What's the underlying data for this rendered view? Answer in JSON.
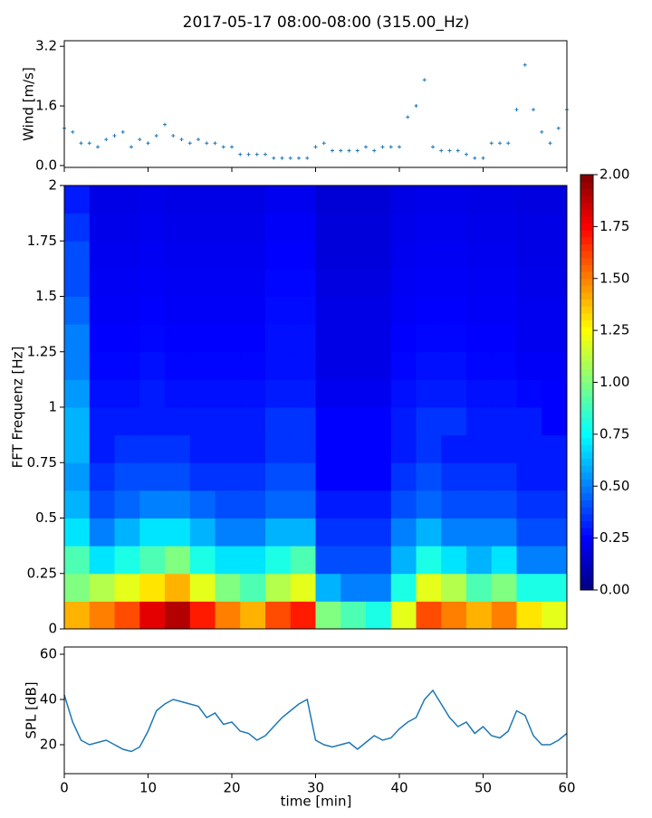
{
  "chart_data": [
    {
      "type": "scatter",
      "title": "2017-05-17 08:00-08:00 (315.00_Hz)",
      "y_label": "Wind [m/s]",
      "color": "#1f77b4",
      "x": [
        0,
        1,
        2,
        3,
        4,
        5,
        6,
        7,
        8,
        9,
        10,
        11,
        12,
        13,
        14,
        15,
        16,
        17,
        18,
        19,
        20,
        21,
        22,
        23,
        24,
        25,
        26,
        27,
        28,
        29,
        30,
        31,
        32,
        33,
        34,
        35,
        36,
        37,
        38,
        39,
        40,
        41,
        42,
        43,
        44,
        45,
        46,
        47,
        48,
        49,
        50,
        51,
        52,
        53,
        54,
        55,
        56,
        57,
        58,
        59,
        60
      ],
      "values": [
        1.0,
        0.9,
        0.6,
        0.6,
        0.5,
        0.7,
        0.8,
        0.9,
        0.5,
        0.7,
        0.6,
        0.8,
        1.1,
        0.8,
        0.7,
        0.6,
        0.7,
        0.6,
        0.6,
        0.5,
        0.5,
        0.3,
        0.3,
        0.3,
        0.3,
        0.2,
        0.2,
        0.2,
        0.2,
        0.2,
        0.5,
        0.6,
        0.4,
        0.4,
        0.4,
        0.4,
        0.5,
        0.4,
        0.5,
        0.5,
        0.5,
        1.3,
        1.6,
        2.3,
        0.5,
        0.4,
        0.4,
        0.4,
        0.3,
        0.2,
        0.2,
        0.6,
        0.6,
        0.6,
        1.5,
        2.7,
        1.5,
        0.9,
        0.6,
        1.0,
        1.5
      ],
      "xlim": [
        0,
        60
      ],
      "ylim": [
        -0.05,
        3.35
      ],
      "yticks": [
        {
          "value": 0,
          "label": "0.0"
        },
        1.6,
        3.2
      ]
    },
    {
      "type": "heatmap",
      "y_label": "FFT Frequenz [Hz]",
      "colormap": "jet",
      "xlim": [
        0,
        60
      ],
      "ylim": [
        0,
        2
      ],
      "clim": [
        0,
        2
      ],
      "yticks": [
        0,
        0.25,
        0.5,
        0.75,
        1,
        1.25,
        1.5,
        1.75,
        2
      ],
      "cticks": [
        {
          "value": 0,
          "label": "0.00"
        },
        {
          "value": 0.25,
          "label": "0.25"
        },
        {
          "value": 0.5,
          "label": "0.50"
        },
        {
          "value": 0.75,
          "label": "0.75"
        },
        {
          "value": 1,
          "label": "1.00"
        },
        {
          "value": 1.25,
          "label": "1.25"
        },
        {
          "value": 1.5,
          "label": "1.50"
        },
        {
          "value": 1.75,
          "label": "1.75"
        },
        {
          "value": 2,
          "label": "2.00"
        }
      ],
      "values": [
        [
          1.4,
          1.5,
          1.6,
          1.8,
          1.9,
          1.7,
          1.5,
          1.4,
          1.6,
          1.7,
          1.0,
          0.9,
          0.8,
          1.2,
          1.6,
          1.5,
          1.4,
          1.5,
          1.3,
          1.2
        ],
        [
          1.0,
          1.1,
          1.2,
          1.3,
          1.4,
          1.2,
          1.0,
          0.9,
          1.1,
          1.2,
          0.6,
          0.5,
          0.5,
          0.8,
          1.2,
          1.1,
          0.9,
          1.0,
          0.8,
          0.8
        ],
        [
          0.9,
          0.7,
          0.8,
          0.9,
          1.0,
          0.8,
          0.7,
          0.7,
          0.8,
          0.9,
          0.4,
          0.4,
          0.4,
          0.6,
          0.8,
          0.7,
          0.6,
          0.7,
          0.5,
          0.5
        ],
        [
          0.7,
          0.5,
          0.6,
          0.7,
          0.7,
          0.6,
          0.5,
          0.5,
          0.6,
          0.6,
          0.35,
          0.35,
          0.35,
          0.5,
          0.6,
          0.5,
          0.5,
          0.5,
          0.4,
          0.4
        ],
        [
          0.6,
          0.4,
          0.45,
          0.5,
          0.5,
          0.45,
          0.4,
          0.4,
          0.45,
          0.45,
          0.3,
          0.3,
          0.3,
          0.4,
          0.45,
          0.4,
          0.4,
          0.4,
          0.35,
          0.35
        ],
        [
          0.55,
          0.35,
          0.4,
          0.4,
          0.4,
          0.35,
          0.35,
          0.35,
          0.4,
          0.4,
          0.25,
          0.25,
          0.25,
          0.35,
          0.4,
          0.35,
          0.35,
          0.35,
          0.3,
          0.3
        ],
        [
          0.6,
          0.3,
          0.35,
          0.35,
          0.35,
          0.3,
          0.3,
          0.3,
          0.35,
          0.35,
          0.25,
          0.25,
          0.25,
          0.3,
          0.35,
          0.3,
          0.3,
          0.3,
          0.3,
          0.3
        ],
        [
          0.6,
          0.3,
          0.3,
          0.3,
          0.3,
          0.3,
          0.3,
          0.3,
          0.35,
          0.35,
          0.25,
          0.25,
          0.25,
          0.3,
          0.35,
          0.35,
          0.3,
          0.3,
          0.3,
          0.25
        ],
        [
          0.55,
          0.28,
          0.28,
          0.3,
          0.28,
          0.28,
          0.28,
          0.28,
          0.3,
          0.3,
          0.22,
          0.22,
          0.22,
          0.28,
          0.3,
          0.3,
          0.28,
          0.28,
          0.26,
          0.25
        ],
        [
          0.5,
          0.26,
          0.26,
          0.28,
          0.26,
          0.26,
          0.26,
          0.26,
          0.28,
          0.28,
          0.2,
          0.2,
          0.2,
          0.26,
          0.28,
          0.28,
          0.26,
          0.26,
          0.24,
          0.24
        ],
        [
          0.5,
          0.25,
          0.25,
          0.26,
          0.25,
          0.25,
          0.25,
          0.25,
          0.28,
          0.28,
          0.2,
          0.2,
          0.2,
          0.25,
          0.26,
          0.26,
          0.25,
          0.25,
          0.22,
          0.22
        ],
        [
          0.45,
          0.24,
          0.24,
          0.25,
          0.24,
          0.24,
          0.24,
          0.24,
          0.27,
          0.27,
          0.2,
          0.2,
          0.2,
          0.24,
          0.25,
          0.25,
          0.24,
          0.24,
          0.22,
          0.22
        ],
        [
          0.4,
          0.23,
          0.23,
          0.24,
          0.23,
          0.23,
          0.23,
          0.23,
          0.26,
          0.26,
          0.19,
          0.19,
          0.19,
          0.23,
          0.24,
          0.24,
          0.23,
          0.23,
          0.21,
          0.21
        ],
        [
          0.4,
          0.22,
          0.22,
          0.23,
          0.22,
          0.22,
          0.22,
          0.22,
          0.25,
          0.25,
          0.18,
          0.18,
          0.18,
          0.22,
          0.23,
          0.23,
          0.22,
          0.22,
          0.2,
          0.2
        ],
        [
          0.35,
          0.21,
          0.21,
          0.22,
          0.21,
          0.21,
          0.21,
          0.21,
          0.24,
          0.24,
          0.18,
          0.18,
          0.18,
          0.21,
          0.22,
          0.22,
          0.21,
          0.21,
          0.2,
          0.2
        ],
        [
          0.3,
          0.2,
          0.2,
          0.21,
          0.2,
          0.2,
          0.2,
          0.2,
          0.22,
          0.22,
          0.17,
          0.17,
          0.17,
          0.2,
          0.21,
          0.21,
          0.2,
          0.2,
          0.19,
          0.19
        ]
      ]
    },
    {
      "type": "line",
      "x_label": "time [min]",
      "y_label": "SPL [dB]",
      "color": "#1f77b4",
      "x": [
        0,
        1,
        2,
        3,
        4,
        5,
        6,
        7,
        8,
        9,
        10,
        11,
        12,
        13,
        14,
        15,
        16,
        17,
        18,
        19,
        20,
        21,
        22,
        23,
        24,
        25,
        26,
        27,
        28,
        29,
        30,
        31,
        32,
        33,
        34,
        35,
        36,
        37,
        38,
        39,
        40,
        41,
        42,
        43,
        44,
        45,
        46,
        47,
        48,
        49,
        50,
        51,
        52,
        53,
        54,
        55,
        56,
        57,
        58,
        59,
        60
      ],
      "values": [
        42,
        30,
        22,
        20,
        21,
        22,
        20,
        18,
        17,
        19,
        26,
        35,
        38,
        40,
        39,
        38,
        37,
        32,
        34,
        29,
        30,
        26,
        25,
        22,
        24,
        28,
        32,
        35,
        38,
        40,
        22,
        20,
        19,
        20,
        21,
        18,
        21,
        24,
        22,
        23,
        27,
        30,
        32,
        40,
        44,
        38,
        32,
        28,
        30,
        25,
        28,
        24,
        23,
        26,
        35,
        33,
        24,
        20,
        20,
        22,
        25
      ],
      "xlim": [
        0,
        60
      ],
      "ylim": [
        7.2,
        63.2
      ],
      "xticks": [
        0,
        10,
        20,
        30,
        40,
        50,
        60
      ],
      "yticks": [
        20,
        40,
        60
      ]
    }
  ]
}
